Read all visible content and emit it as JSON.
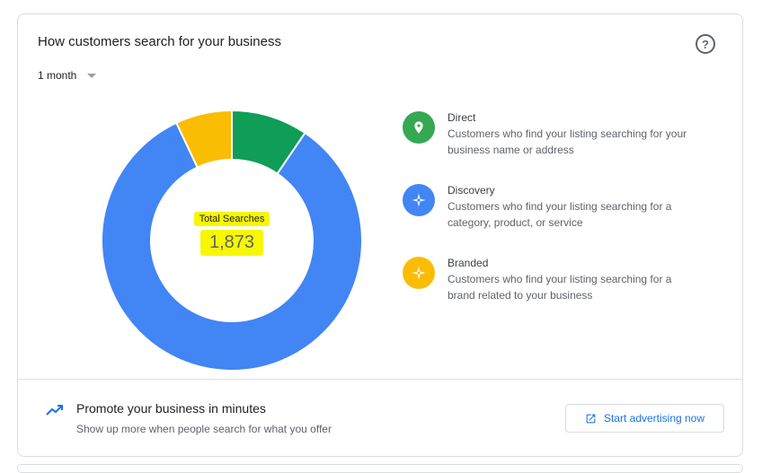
{
  "card": {
    "title": "How customers search for your business",
    "period": "1 month",
    "help_icon": "help-circle-icon"
  },
  "chart_data": {
    "type": "pie",
    "total_label": "Total Searches",
    "total_value": "1,873",
    "slices": [
      {
        "name": "Direct",
        "value": 0.095,
        "color": "#0f9d58"
      },
      {
        "name": "Discovery",
        "value": 0.835,
        "color": "#4285f4"
      },
      {
        "name": "Branded",
        "value": 0.07,
        "color": "#fbbc04"
      }
    ]
  },
  "legend": [
    {
      "name": "Direct",
      "description": "Customers who find your listing searching for your business name or address",
      "color": "#34a853",
      "icon": "map-pin-icon"
    },
    {
      "name": "Discovery",
      "description": "Customers who find your listing searching for a category, product, or service",
      "color": "#4285f4",
      "icon": "compass-icon"
    },
    {
      "name": "Branded",
      "description": "Customers who find your listing searching for a brand related to your business",
      "color": "#fbbc04",
      "icon": "compass-icon"
    }
  ],
  "promo": {
    "icon": "trending-up-icon",
    "title": "Promote your business in minutes",
    "subtitle": "Show up more when people search for what you offer",
    "button_label": "Start advertising now",
    "button_icon": "open-in-new-icon"
  }
}
